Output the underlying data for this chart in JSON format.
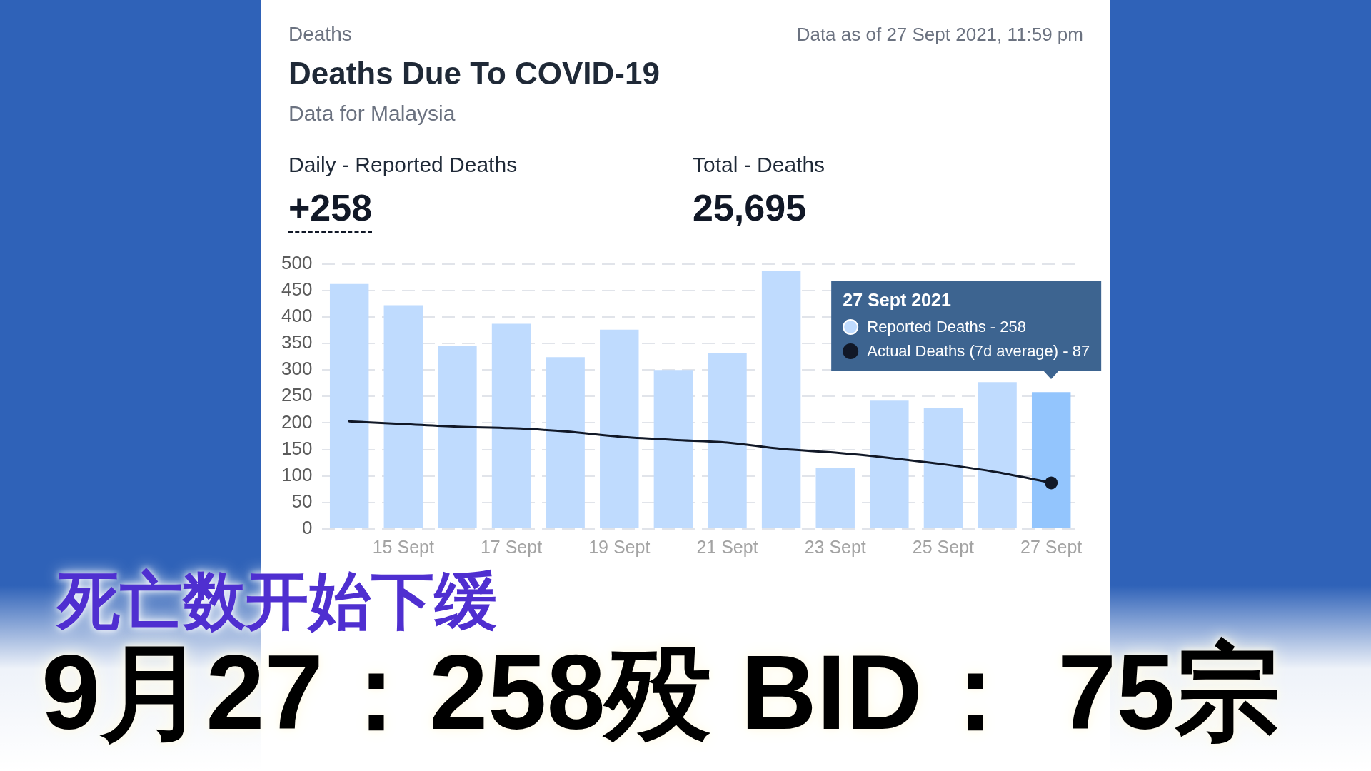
{
  "chart_data": {
    "type": "bar",
    "title": "Deaths Due To COVID-19",
    "subtitle": "Data for Malaysia",
    "categories": [
      null,
      "15 Sept",
      null,
      "17 Sept",
      null,
      "19 Sept",
      null,
      "21 Sept",
      null,
      "23 Sept",
      null,
      "25 Sept",
      null,
      "27 Sept"
    ],
    "series": [
      {
        "color": "#bfdbfe",
        "colors": [
          "#bfdbfe",
          "#bfdbfe",
          "#bfdbfe",
          "#bfdbfe",
          "#bfdbfe",
          "#bfdbfe",
          "#bfdbfe",
          "#bfdbfe",
          "#bfdbfe",
          "#bfdbfe",
          "#bfdbfe",
          "#bfdbfe",
          "#bfdbfe",
          "#93c5fd"
        ],
        "values": [
          462,
          422,
          346,
          387,
          324,
          376,
          300,
          332,
          486,
          115,
          242,
          228,
          277,
          258
        ]
      },
      {
        "type": "line",
        "color": "#111827",
        "values": [
          203,
          198,
          193,
          190,
          184,
          174,
          168,
          163,
          151,
          144,
          134,
          122,
          107,
          87
        ]
      }
    ],
    "ylim": [
      0,
      500
    ],
    "yticks": [
      0,
      50,
      100,
      150,
      200,
      250,
      300,
      350,
      400,
      450,
      500
    ],
    "grid": "y",
    "marker": "none",
    "line_style": "solid",
    "annotations": [
      "Deaths",
      "Data as of 27 Sept 2021, 11:59 pm",
      "Daily - Reported Deaths",
      "+258",
      "Total - Deaths",
      "25,695",
      "27 Sept 2021",
      "Reported Deaths - 258",
      "Actual Deaths (7d average) - 87",
      "死亡数开始下缓",
      "9月27：258殁 BID： 75宗"
    ]
  }
}
